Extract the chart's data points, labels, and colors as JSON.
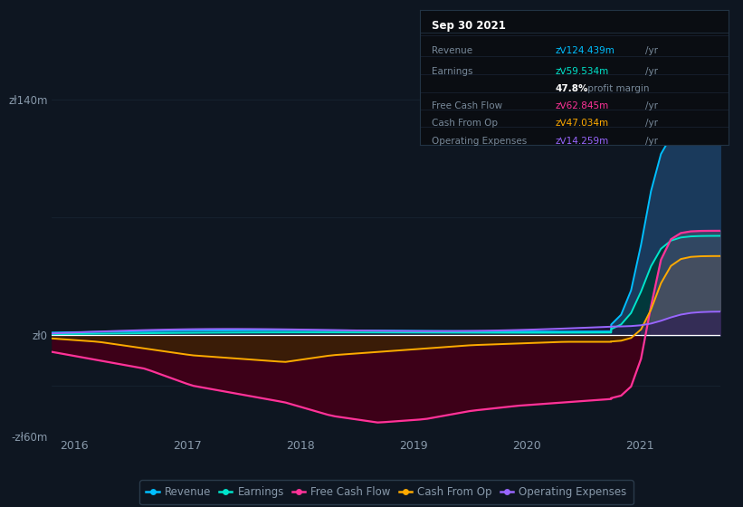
{
  "background_color": "#0e1621",
  "plot_bg_color": "#0e1621",
  "grid_color": "#1e2d3d",
  "text_color": "#8899aa",
  "ylim": [
    -60,
    160
  ],
  "xtick_labels": [
    "2016",
    "2017",
    "2018",
    "2019",
    "2020",
    "2021"
  ],
  "series_colors": {
    "Revenue": "#00bfff",
    "Earnings": "#00e5cc",
    "FreeCashFlow": "#ff3399",
    "CashFromOp": "#ffaa00",
    "OperatingExpenses": "#9966ff"
  },
  "fill_colors": {
    "Revenue": "#1a3a5c",
    "FreeCashFlow": "#3d0018",
    "CashFromOp": "#3a2800",
    "OperatingExpenses": "#2a1850",
    "Earnings": "#003838"
  },
  "tooltip": {
    "date": "Sep 30 2021",
    "Revenue_label": "Revenue",
    "Revenue_val": "zᐯ124.439m",
    "Revenue_unit": "/yr",
    "Earnings_label": "Earnings",
    "Earnings_val": "zᐯ59.534m",
    "Earnings_unit": "/yr",
    "margin_pct": "47.8%",
    "margin_text": " profit margin",
    "FCF_label": "Free Cash Flow",
    "FCF_val": "zᐯ62.845m",
    "FCF_unit": "/yr",
    "COP_label": "Cash From Op",
    "COP_val": "zᐯ47.034m",
    "COP_unit": "/yr",
    "OPEX_label": "Operating Expenses",
    "OPEX_val": "zᐯ14.259m",
    "OPEX_unit": "/yr"
  },
  "legend_labels": [
    "Revenue",
    "Earnings",
    "Free Cash Flow",
    "Cash From Op",
    "Operating Expenses"
  ],
  "legend_colors": [
    "#00bfff",
    "#00e5cc",
    "#ff3399",
    "#ffaa00",
    "#9966ff"
  ]
}
